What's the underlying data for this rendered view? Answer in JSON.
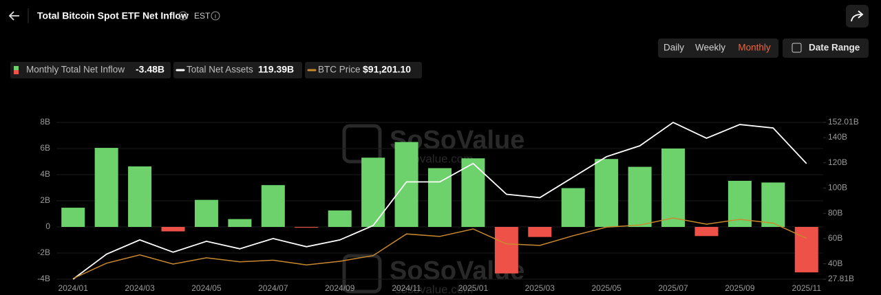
{
  "header": {
    "title": "Total Bitcoin Spot ETF Net Inflow",
    "timezone": "EST"
  },
  "controls": {
    "periods": [
      "Daily",
      "Weekly",
      "Monthly"
    ],
    "active_period": 2,
    "date_range": "Date Range"
  },
  "watermark": {
    "brand": "SoSoValue",
    "url": "sosovalue.com"
  },
  "chart_data": {
    "type": "bar",
    "categories": [
      "2024/01",
      null,
      "2024/03",
      null,
      "2024/05",
      null,
      "2024/07",
      null,
      "2024/09",
      null,
      "2024/11",
      null,
      "2025/01",
      null,
      "2025/03",
      null,
      "2025/05",
      null,
      "2025/07",
      null,
      "2025/09",
      null,
      "2025/11"
    ],
    "series": [
      {
        "name": "Monthly Total Net Inflow",
        "type": "bar",
        "latest_label": "-3.48B",
        "color": "#6dd16c",
        "negative_color": "#ee5147",
        "values": [
          1.47,
          6.05,
          4.63,
          -0.34,
          2.07,
          0.6,
          3.2,
          -0.06,
          1.26,
          5.3,
          6.5,
          4.5,
          5.25,
          -3.56,
          -0.77,
          2.97,
          5.2,
          4.6,
          6.0,
          -0.7,
          3.53,
          3.4,
          -3.48
        ]
      },
      {
        "name": "Total Net Assets",
        "type": "line",
        "axis": "y2",
        "latest_label": "119.39B",
        "color": "#ffffff",
        "values": [
          27.81,
          47.6,
          58.9,
          49.2,
          57.8,
          51.9,
          60.0,
          53.5,
          58.9,
          70.3,
          104.9,
          104.9,
          119.5,
          95.1,
          92.4,
          108.6,
          124.9,
          133.5,
          152.01,
          139.5,
          150.3,
          147.6,
          119.39
        ]
      },
      {
        "name": "BTC Price",
        "type": "line",
        "latest_label": "$91,201.10",
        "color": "#c98a2e",
        "values": [
          42500,
          61000,
          71000,
          60000,
          67500,
          62700,
          64600,
          59000,
          63300,
          70200,
          96400,
          93400,
          102400,
          84300,
          82500,
          94200,
          104600,
          107100,
          115700,
          108200,
          114000,
          109500,
          91201.1
        ]
      }
    ],
    "ylim": [
      -4,
      8
    ],
    "yticks": [
      {
        "value": -4,
        "label": "-4B"
      },
      {
        "value": -2,
        "label": "-2B"
      },
      0,
      {
        "value": 2,
        "label": "2B"
      },
      {
        "value": 4,
        "label": "4B"
      },
      {
        "value": 6,
        "label": "6B"
      },
      {
        "value": 8,
        "label": "8B"
      }
    ],
    "y2lim": [
      27.81,
      152.01
    ],
    "y2ticks": [
      {
        "value": 27.81,
        "label": "27.81B"
      },
      {
        "value": 40,
        "label": "40B"
      },
      {
        "value": 60,
        "label": "60B"
      },
      {
        "value": 80,
        "label": "80B"
      },
      {
        "value": 100,
        "label": "100B"
      },
      {
        "value": 120,
        "label": "120B"
      },
      {
        "value": 140,
        "label": "140B"
      },
      {
        "value": 152.01,
        "label": "152.01B"
      }
    ],
    "grid": true
  }
}
